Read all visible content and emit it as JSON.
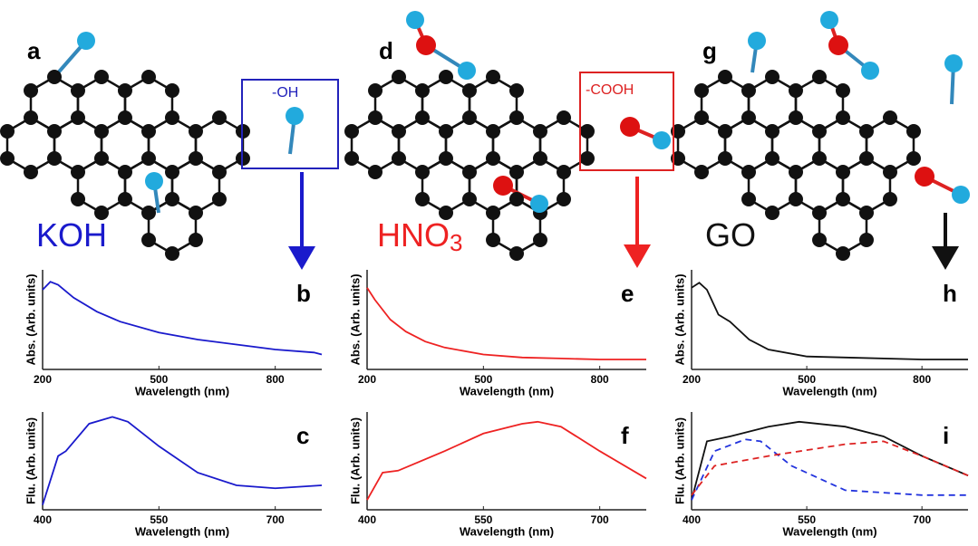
{
  "labels": {
    "panels": [
      "a",
      "d",
      "g"
    ],
    "groups": [
      "-OH",
      "-COOH"
    ],
    "treatments": [
      {
        "text": "KOH"
      },
      {
        "text": "HNO",
        "sub": "3"
      },
      {
        "text": "GO"
      }
    ]
  },
  "chart_data": [
    {
      "type": "line",
      "title": "b",
      "x_label": "Wavelength (nm)",
      "y_label": "Abs. (Arb. units)",
      "xlim": [
        200,
        920
      ],
      "ylim": [
        0,
        1
      ],
      "xticks": [
        200,
        500,
        800
      ],
      "series": [
        {
          "color": "#1a1acc",
          "dashed": false,
          "x": [
            200,
            220,
            240,
            280,
            340,
            400,
            500,
            600,
            700,
            800,
            900,
            920
          ],
          "values": [
            0.8,
            0.88,
            0.85,
            0.72,
            0.58,
            0.48,
            0.37,
            0.3,
            0.25,
            0.2,
            0.17,
            0.15
          ]
        }
      ]
    },
    {
      "type": "line",
      "title": "c",
      "x_label": "Wavelength (nm)",
      "y_label": "Flu. (Arb. units)",
      "xlim": [
        400,
        760
      ],
      "ylim": [
        0,
        1
      ],
      "xticks": [
        400,
        550,
        700
      ],
      "series": [
        {
          "color": "#1a1acc",
          "dashed": false,
          "x": [
            400,
            420,
            430,
            460,
            490,
            510,
            550,
            600,
            650,
            700,
            760
          ],
          "values": [
            0.05,
            0.55,
            0.6,
            0.88,
            0.95,
            0.9,
            0.65,
            0.38,
            0.25,
            0.22,
            0.25
          ]
        }
      ]
    },
    {
      "type": "line",
      "title": "e",
      "x_label": "Wavelength (nm)",
      "y_label": "Abs. (Arb. units)",
      "xlim": [
        200,
        920
      ],
      "ylim": [
        0,
        1
      ],
      "xticks": [
        200,
        500,
        800
      ],
      "series": [
        {
          "color": "#ee2222",
          "dashed": false,
          "x": [
            200,
            220,
            260,
            300,
            350,
            400,
            500,
            600,
            700,
            800,
            920
          ],
          "values": [
            0.82,
            0.7,
            0.5,
            0.38,
            0.28,
            0.22,
            0.15,
            0.12,
            0.11,
            0.1,
            0.1
          ]
        }
      ]
    },
    {
      "type": "line",
      "title": "f",
      "x_label": "Wavelength (nm)",
      "y_label": "Flu. (Arb. units)",
      "xlim": [
        400,
        760
      ],
      "ylim": [
        0,
        1
      ],
      "xticks": [
        400,
        550,
        700
      ],
      "series": [
        {
          "color": "#ee2222",
          "dashed": false,
          "x": [
            400,
            420,
            440,
            500,
            550,
            600,
            620,
            650,
            700,
            760
          ],
          "values": [
            0.1,
            0.38,
            0.4,
            0.6,
            0.78,
            0.88,
            0.9,
            0.85,
            0.6,
            0.32
          ]
        }
      ]
    },
    {
      "type": "line",
      "title": "h",
      "x_label": "Wavelength (nm)",
      "y_label": "Abs. (Arb. units)",
      "xlim": [
        200,
        920
      ],
      "ylim": [
        0,
        1
      ],
      "xticks": [
        200,
        500,
        800
      ],
      "series": [
        {
          "color": "#111111",
          "dashed": false,
          "x": [
            200,
            220,
            240,
            270,
            300,
            350,
            400,
            500,
            600,
            800,
            920
          ],
          "values": [
            0.82,
            0.87,
            0.8,
            0.55,
            0.48,
            0.3,
            0.2,
            0.13,
            0.12,
            0.1,
            0.1
          ]
        }
      ]
    },
    {
      "type": "line",
      "title": "i",
      "x_label": "Wavelength (nm)",
      "y_label": "Flu. (Arb. units)",
      "xlim": [
        400,
        760
      ],
      "ylim": [
        0,
        1
      ],
      "xticks": [
        400,
        550,
        700
      ],
      "series": [
        {
          "color": "#111111",
          "dashed": false,
          "x": [
            400,
            420,
            450,
            500,
            540,
            600,
            650,
            700,
            760
          ],
          "values": [
            0.1,
            0.7,
            0.75,
            0.85,
            0.9,
            0.85,
            0.75,
            0.55,
            0.35
          ]
        },
        {
          "color": "#2233dd",
          "dashed": true,
          "x": [
            400,
            430,
            470,
            490,
            530,
            600,
            700,
            760
          ],
          "values": [
            0.1,
            0.6,
            0.72,
            0.7,
            0.45,
            0.2,
            0.15,
            0.15
          ]
        },
        {
          "color": "#dd2222",
          "dashed": true,
          "x": [
            400,
            430,
            500,
            600,
            650,
            700,
            760
          ],
          "values": [
            0.15,
            0.45,
            0.55,
            0.67,
            0.7,
            0.55,
            0.35
          ]
        }
      ]
    }
  ]
}
